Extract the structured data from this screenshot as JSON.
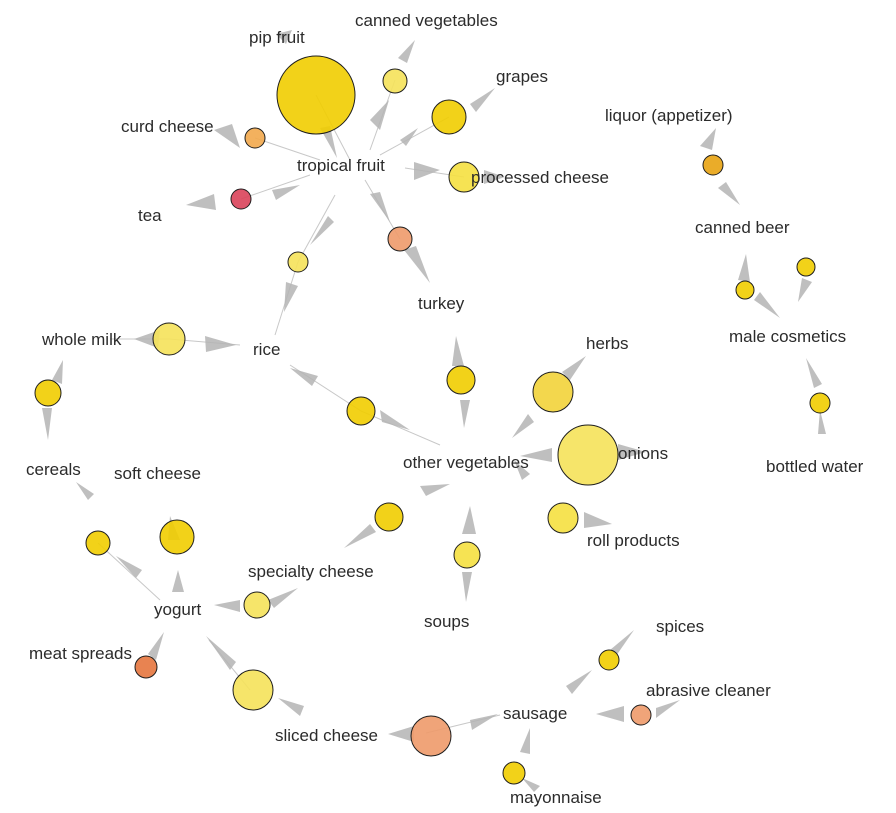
{
  "items": {
    "pip_fruit": "pip fruit",
    "canned_vegetables": "canned vegetables",
    "grapes": "grapes",
    "curd_cheese": "curd cheese",
    "tropical_fruit": "tropical fruit",
    "processed_cheese": "processed cheese",
    "tea": "tea",
    "turkey": "turkey",
    "liquor": "liquor (appetizer)",
    "canned_beer": "canned beer",
    "male_cosmetics": "male cosmetics",
    "bottled_water": "bottled water",
    "whole_milk": "whole milk",
    "rice": "rice",
    "herbs": "herbs",
    "other_vegetables": "other vegetables",
    "onions": "onions",
    "cereals": "cereals",
    "soft_cheese": "soft cheese",
    "roll_products": "roll products",
    "specialty_cheese": "specialty cheese",
    "yogurt": "yogurt",
    "soups": "soups",
    "meat_spreads": "meat spreads",
    "spices": "spices",
    "abrasive_cleaner": "abrasive cleaner",
    "sausage": "sausage",
    "sliced_cheese": "sliced cheese",
    "mayonnaise": "mayonnaise"
  },
  "colors": {
    "lift_low": "#f5e25a",
    "lift_mid": "#f1cd00",
    "lift_high": "#ee9a6a",
    "lift_max": "#d9435a",
    "arrow": "#b4b4b4",
    "edge": "#c8c8c8"
  }
}
